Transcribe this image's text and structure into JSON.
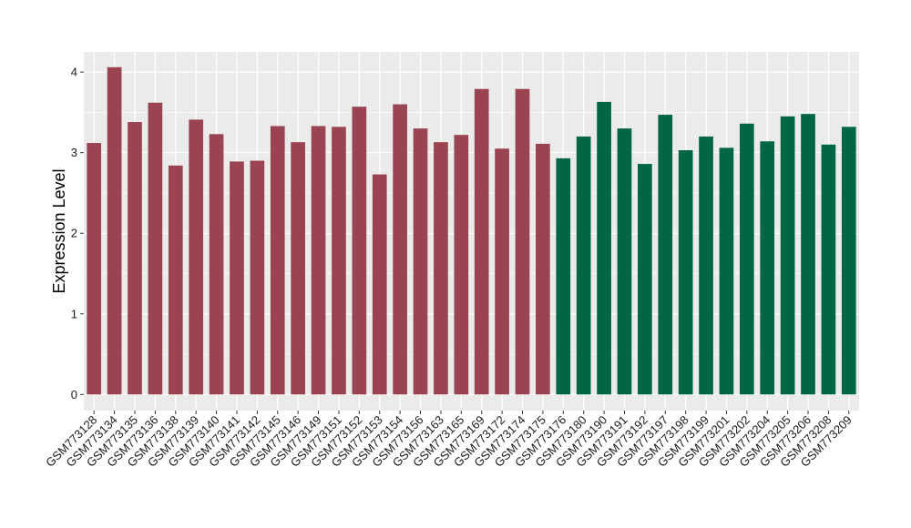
{
  "chart_data": {
    "type": "bar",
    "title": "",
    "xlabel": "",
    "ylabel": "Expression Level",
    "ylim": [
      -0.2,
      4.25
    ],
    "yticks": [
      0,
      1,
      2,
      3,
      4
    ],
    "grid": true,
    "categories": [
      "GSM773128",
      "GSM773134",
      "GSM773135",
      "GSM773136",
      "GSM773138",
      "GSM773139",
      "GSM773140",
      "GSM773141",
      "GSM773142",
      "GSM773145",
      "GSM773146",
      "GSM773149",
      "GSM773151",
      "GSM773152",
      "GSM773153",
      "GSM773154",
      "GSM773156",
      "GSM773163",
      "GSM773165",
      "GSM773169",
      "GSM773172",
      "GSM773174",
      "GSM773175",
      "GSM773176",
      "GSM773180",
      "GSM773190",
      "GSM773191",
      "GSM773192",
      "GSM773197",
      "GSM773198",
      "GSM773199",
      "GSM773201",
      "GSM773202",
      "GSM773204",
      "GSM773205",
      "GSM773206",
      "GSM773208",
      "GSM773209"
    ],
    "values": [
      3.12,
      4.06,
      3.38,
      3.62,
      2.84,
      3.41,
      3.23,
      2.89,
      2.9,
      3.33,
      3.13,
      3.33,
      3.32,
      3.57,
      2.73,
      3.6,
      3.3,
      3.13,
      3.22,
      3.79,
      3.05,
      3.79,
      3.11,
      2.93,
      3.2,
      3.63,
      3.3,
      2.86,
      3.47,
      3.03,
      3.2,
      3.06,
      3.36,
      3.14,
      3.45,
      3.48,
      3.1,
      3.32
    ],
    "group_colors": [
      "#9a4451",
      "#9a4451",
      "#9a4451",
      "#9a4451",
      "#9a4451",
      "#9a4451",
      "#9a4451",
      "#9a4451",
      "#9a4451",
      "#9a4451",
      "#9a4451",
      "#9a4451",
      "#9a4451",
      "#9a4451",
      "#9a4451",
      "#9a4451",
      "#9a4451",
      "#9a4451",
      "#9a4451",
      "#9a4451",
      "#9a4451",
      "#9a4451",
      "#9a4451",
      "#006644",
      "#006644",
      "#006644",
      "#006644",
      "#006644",
      "#006644",
      "#006644",
      "#006644",
      "#006644",
      "#006644",
      "#006644",
      "#006644",
      "#006644",
      "#006644",
      "#006644"
    ],
    "panel_background": "#ebebeb",
    "gridline_color": "#ffffff"
  }
}
